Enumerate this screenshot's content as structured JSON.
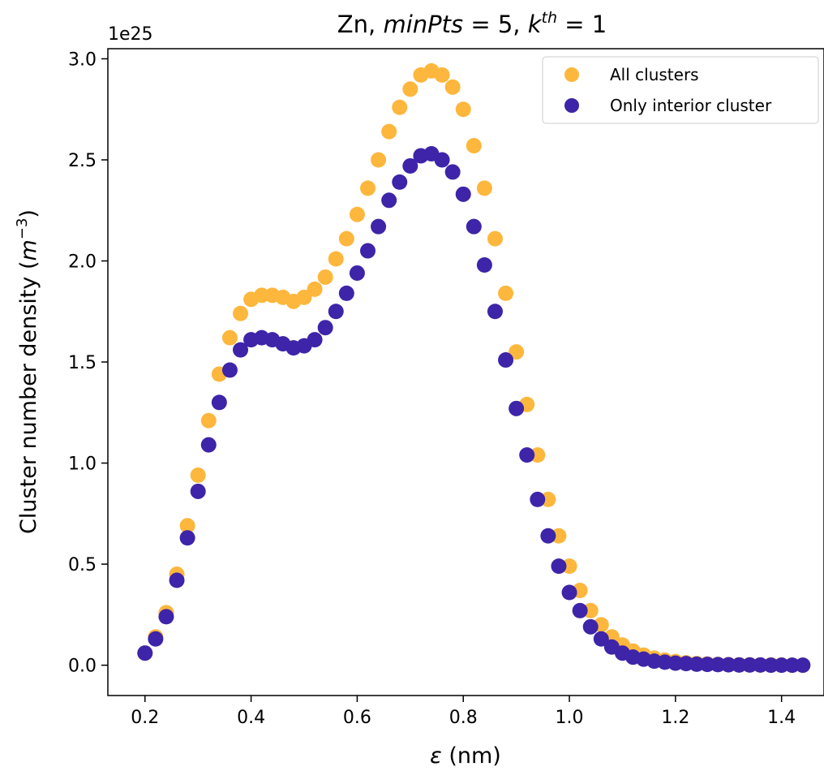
{
  "chart_data": {
    "type": "scatter",
    "title": "Zn, minPts = 5, k^th = 1",
    "title_parts": {
      "prefix": "Zn, ",
      "minpts": "minPts",
      "minpts_eq": " = 5, ",
      "k": "k",
      "k_sup": "th",
      "k_eq": " = 1"
    },
    "xlabel": "ε (nm)",
    "xlabel_parts": {
      "symbol": "ε",
      "unit": " (nm)"
    },
    "ylabel": "Cluster number density (m^-3)",
    "ylabel_parts": {
      "main": "Cluster number density (",
      "m": "m",
      "exp": "−3",
      "close": ")"
    },
    "y_offset_text": "1e25",
    "xlim": [
      0.13,
      1.48
    ],
    "ylim": [
      -0.15,
      3.05
    ],
    "xticks": [
      0.2,
      0.4,
      0.6,
      0.8,
      1.0,
      1.2,
      1.4
    ],
    "xtick_labels": [
      "0.2",
      "0.4",
      "0.6",
      "0.8",
      "1.0",
      "1.2",
      "1.4"
    ],
    "yticks": [
      0.0,
      0.5,
      1.0,
      1.5,
      2.0,
      2.5,
      3.0
    ],
    "ytick_labels": [
      "0.0",
      "0.5",
      "1.0",
      "1.5",
      "2.0",
      "2.5",
      "3.0"
    ],
    "legend_position": "upper right",
    "grid": false,
    "x": [
      0.2,
      0.22,
      0.24,
      0.26,
      0.28,
      0.3,
      0.32,
      0.34,
      0.36,
      0.38,
      0.4,
      0.42,
      0.44,
      0.46,
      0.48,
      0.5,
      0.52,
      0.54,
      0.56,
      0.58,
      0.6,
      0.62,
      0.64,
      0.66,
      0.68,
      0.7,
      0.72,
      0.74,
      0.76,
      0.78,
      0.8,
      0.82,
      0.84,
      0.86,
      0.88,
      0.9,
      0.92,
      0.94,
      0.96,
      0.98,
      1.0,
      1.02,
      1.04,
      1.06,
      1.08,
      1.1,
      1.12,
      1.14,
      1.16,
      1.18,
      1.2,
      1.22,
      1.24,
      1.26,
      1.28,
      1.3,
      1.32,
      1.34,
      1.36,
      1.38,
      1.4,
      1.42,
      1.44
    ],
    "series": [
      {
        "name": "All clusters",
        "color": "#fdb73d",
        "values": [
          0.06,
          0.14,
          0.26,
          0.45,
          0.69,
          0.94,
          1.21,
          1.44,
          1.62,
          1.74,
          1.81,
          1.83,
          1.83,
          1.82,
          1.8,
          1.82,
          1.86,
          1.92,
          2.01,
          2.11,
          2.23,
          2.36,
          2.5,
          2.64,
          2.76,
          2.85,
          2.92,
          2.94,
          2.92,
          2.86,
          2.75,
          2.57,
          2.36,
          2.11,
          1.84,
          1.55,
          1.29,
          1.04,
          0.82,
          0.64,
          0.49,
          0.37,
          0.27,
          0.2,
          0.14,
          0.1,
          0.07,
          0.05,
          0.035,
          0.025,
          0.018,
          0.012,
          0.008,
          0.006,
          0.004,
          0.003,
          0.002,
          0.002,
          0.001,
          0.001,
          0.001,
          0.0,
          0.0
        ]
      },
      {
        "name": "Only interior cluster",
        "color": "#3e24a8",
        "values": [
          0.06,
          0.13,
          0.24,
          0.42,
          0.63,
          0.86,
          1.09,
          1.3,
          1.46,
          1.56,
          1.61,
          1.62,
          1.61,
          1.59,
          1.57,
          1.58,
          1.61,
          1.67,
          1.75,
          1.84,
          1.94,
          2.05,
          2.17,
          2.3,
          2.39,
          2.47,
          2.52,
          2.53,
          2.5,
          2.44,
          2.33,
          2.17,
          1.98,
          1.75,
          1.51,
          1.27,
          1.04,
          0.82,
          0.64,
          0.49,
          0.36,
          0.27,
          0.19,
          0.13,
          0.09,
          0.06,
          0.04,
          0.03,
          0.02,
          0.015,
          0.01,
          0.008,
          0.005,
          0.004,
          0.003,
          0.002,
          0.001,
          0.001,
          0.001,
          0.0,
          0.0,
          0.0,
          0.0
        ]
      }
    ]
  }
}
